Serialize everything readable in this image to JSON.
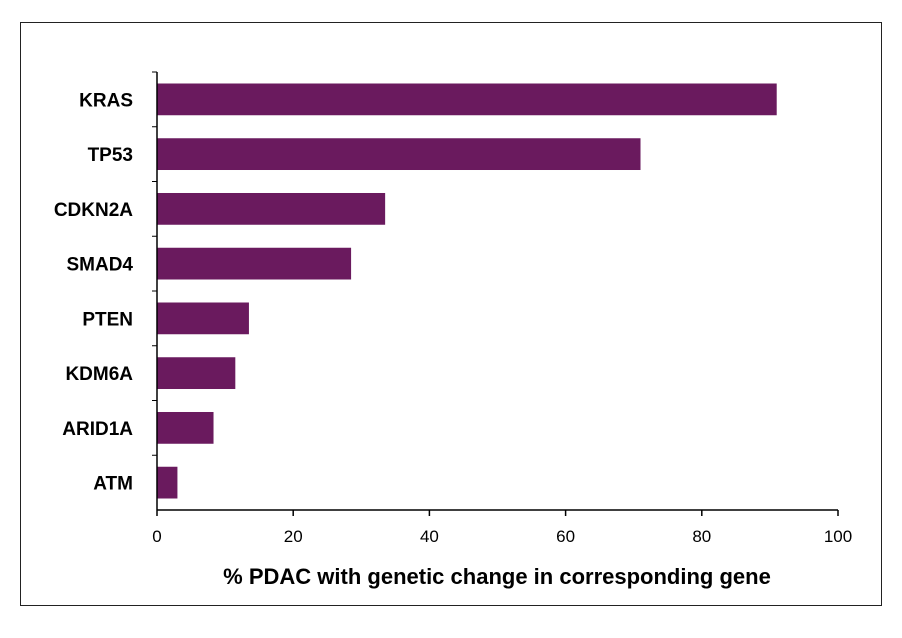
{
  "chart_data": {
    "type": "bar",
    "orientation": "horizontal",
    "title": "",
    "xlabel": "% PDAC with genetic change in corresponding gene",
    "ylabel": "",
    "categories": [
      "KRAS",
      "TP53",
      "CDKN2A",
      "SMAD4",
      "PTEN",
      "KDM6A",
      "ARID1A",
      "ATM"
    ],
    "values": [
      91,
      71,
      33.5,
      28.5,
      13.5,
      11.5,
      8.3,
      3
    ],
    "xlim": [
      0,
      100
    ],
    "xticks": [
      0,
      20,
      40,
      60,
      80,
      100
    ],
    "grid": false,
    "legend": "none",
    "bar_color": "#6a1a5e"
  }
}
